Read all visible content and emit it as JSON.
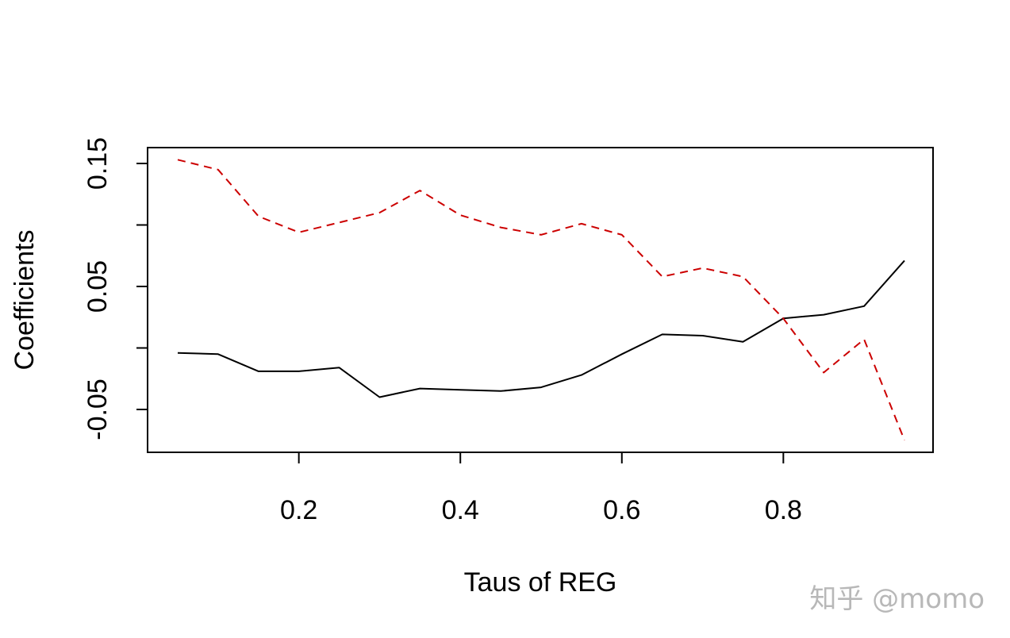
{
  "chart_data": {
    "type": "line",
    "xlabel": "Taus of REG",
    "ylabel": "Coefficients",
    "xlim": [
      0.05,
      0.95
    ],
    "ylim": [
      -0.085,
      0.163
    ],
    "x_ticks": [
      0.2,
      0.4,
      0.6,
      0.8
    ],
    "x_tick_labels": [
      "0.2",
      "0.4",
      "0.6",
      "0.8"
    ],
    "y_ticks": [
      -0.05,
      0.0,
      0.05,
      0.1,
      0.15
    ],
    "y_tick_labels": [
      "-0.05",
      "",
      "0.05",
      "",
      "0.15"
    ],
    "x": [
      0.05,
      0.1,
      0.15,
      0.2,
      0.25,
      0.3,
      0.35,
      0.4,
      0.45,
      0.5,
      0.55,
      0.6,
      0.65,
      0.7,
      0.75,
      0.8,
      0.85,
      0.9,
      0.95
    ],
    "series": [
      {
        "color": "#000000",
        "dash": "solid",
        "values": [
          -0.004,
          -0.005,
          -0.019,
          -0.019,
          -0.016,
          -0.04,
          -0.033,
          -0.034,
          -0.035,
          -0.032,
          -0.022,
          -0.005,
          0.011,
          0.01,
          0.005,
          0.024,
          0.027,
          0.034,
          0.071
        ]
      },
      {
        "color": "#cc0000",
        "dash": "dashed",
        "values": [
          0.153,
          0.145,
          0.107,
          0.094,
          0.102,
          0.11,
          0.128,
          0.108,
          0.098,
          0.092,
          0.101,
          0.092,
          0.058,
          0.065,
          0.058,
          0.024,
          -0.02,
          0.007,
          -0.075
        ]
      }
    ]
  },
  "watermark": {
    "text": "知乎 @momo"
  }
}
